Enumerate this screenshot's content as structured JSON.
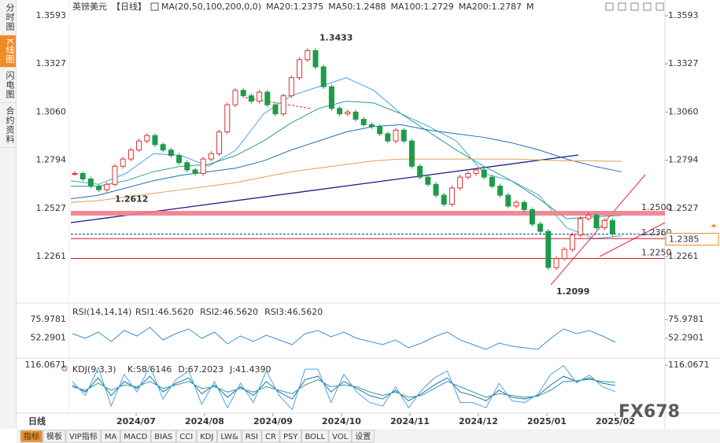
{
  "sidebar": {
    "tabs": [
      "分时图",
      "K线图",
      "闪电图",
      "合约资料"
    ]
  },
  "header": {
    "symbol": "英镑美元",
    "period": "【日线】",
    "ma": "MA(20,50,100,200,0,0)",
    "ma_values": [
      "MA20:1.2375",
      "MA50:1.2488",
      "MA100:1.2729",
      "MA200:1.2787",
      "M"
    ]
  },
  "price_panel": {
    "ylim": [
      1.2004,
      1.3645
    ],
    "yticks": [
      1.3593,
      1.3327,
      {
        "value": 1.306,
        "label": "1.3060"
      },
      1.2794,
      1.2527,
      1.2261
    ],
    "first_open": 1.272,
    "closes": [
      1.272,
      1.269,
      1.265,
      1.263,
      1.266,
      1.276,
      1.28,
      1.285,
      1.29,
      1.293,
      1.288,
      1.285,
      1.282,
      1.278,
      1.274,
      1.272,
      1.28,
      1.283,
      1.295,
      1.31,
      1.318,
      1.315,
      1.312,
      1.317,
      1.31,
      1.305,
      1.315,
      1.325,
      1.335,
      1.34,
      1.331,
      1.32,
      1.308,
      1.305,
      1.306,
      1.302,
      1.299,
      1.298,
      1.294,
      1.29,
      1.296,
      1.29,
      1.276,
      1.27,
      1.266,
      1.26,
      1.255,
      1.264,
      1.27,
      1.272,
      1.274,
      1.27,
      1.265,
      1.26,
      1.254,
      1.256,
      1.252,
      1.244,
      1.24,
      1.22,
      1.225,
      1.23,
      1.238,
      1.247,
      1.249,
      1.242,
      1.246,
      1.2385
    ],
    "ma_lines": [
      {
        "name": "MA20",
        "color": "#4aa3df",
        "values": [
          1.268,
          1.266,
          1.272,
          1.283,
          1.282,
          1.276,
          1.285,
          1.305,
          1.315,
          1.32,
          1.325,
          1.318,
          1.305,
          1.298,
          1.29,
          1.272,
          1.268,
          1.26,
          1.242,
          1.236,
          1.2375
        ]
      },
      {
        "name": "MA50",
        "color": "#2a9d8f",
        "values": [
          1.265,
          1.265,
          1.268,
          1.273,
          1.276,
          1.277,
          1.282,
          1.29,
          1.3,
          1.308,
          1.312,
          1.311,
          1.305,
          1.295,
          1.285,
          1.276,
          1.268,
          1.258,
          1.247,
          1.248,
          1.2488
        ]
      },
      {
        "name": "MA100",
        "color": "#1f6fb4",
        "values": [
          1.258,
          1.26,
          1.264,
          1.268,
          1.271,
          1.273,
          1.275,
          1.279,
          1.285,
          1.29,
          1.295,
          1.298,
          1.299,
          1.296,
          1.294,
          1.292,
          1.289,
          1.285,
          1.28,
          1.276,
          1.2729
        ]
      },
      {
        "name": "MA200",
        "color": "#e0a050",
        "values": [
          1.256,
          1.257,
          1.259,
          1.261,
          1.263,
          1.265,
          1.267,
          1.27,
          1.273,
          1.275,
          1.277,
          1.279,
          1.28,
          1.28,
          1.28,
          1.28,
          1.28,
          1.2795,
          1.279,
          1.279,
          1.2787
        ]
      }
    ],
    "annotations": [
      {
        "value": 1.3433,
        "color": "#d0303a"
      },
      {
        "value": 1.2612,
        "color": "#3a9a5a"
      },
      {
        "value": 1.2099,
        "color": "#3a9a5a"
      }
    ],
    "levels": [
      {
        "value": 1.25,
        "label": "1.2500"
      },
      {
        "value": 1.236,
        "label": "1.2360"
      },
      {
        "value": 1.225,
        "label": "1.2250"
      }
    ],
    "current": 1.2385
  },
  "rsi_panel": {
    "title": "RSI(14,14,14)",
    "legend": [
      "RSI1:46.5620",
      "RSI2:46.5620",
      "RSI3:46.5620"
    ],
    "ylim": [
      27,
      94
    ],
    "yticks": [
      75.9781,
      52.2901
    ],
    "values": [
      58,
      52,
      60,
      48,
      62,
      55,
      66,
      50,
      58,
      64,
      52,
      60,
      45,
      55,
      48,
      56,
      50,
      44,
      58,
      62,
      54,
      60,
      52,
      48,
      44,
      50,
      40,
      46,
      54,
      60,
      50,
      44,
      38,
      46,
      42,
      40,
      38,
      52,
      64,
      58,
      62,
      55,
      47
    ]
  },
  "kdj_panel": {
    "title": "KDJ(9,3,3)",
    "legend": [
      "K:58.6146",
      "D:67.2023",
      "J:41.4390"
    ],
    "ylim": [
      -20,
      130
    ],
    "yticks": [
      116.0671
    ],
    "series": [
      {
        "name": "K",
        "color": "#1f6fb4",
        "values": [
          60,
          40,
          80,
          30,
          70,
          50,
          85,
          40,
          65,
          80,
          35,
          60,
          25,
          55,
          30,
          70,
          40,
          20,
          75,
          85,
          40,
          70,
          50,
          30,
          20,
          45,
          15,
          35,
          60,
          80,
          40,
          30,
          15,
          45,
          25,
          20,
          30,
          60,
          85,
          70,
          80,
          65,
          58.6146
        ]
      },
      {
        "name": "D",
        "color": "#2a9d8f",
        "values": [
          55,
          45,
          65,
          45,
          60,
          55,
          70,
          50,
          60,
          70,
          50,
          55,
          40,
          50,
          40,
          55,
          45,
          35,
          60,
          75,
          55,
          60,
          55,
          40,
          30,
          40,
          25,
          30,
          50,
          70,
          55,
          40,
          25,
          35,
          30,
          25,
          28,
          45,
          70,
          72,
          76,
          70,
          67.2023
        ]
      },
      {
        "name": "J",
        "color": "#4aa3df",
        "values": [
          70,
          30,
          110,
          0,
          90,
          40,
          115,
          20,
          75,
          100,
          5,
          70,
          -5,
          65,
          10,
          100,
          30,
          -10,
          105,
          105,
          10,
          90,
          40,
          10,
          0,
          55,
          -5,
          45,
          80,
          100,
          10,
          10,
          -5,
          65,
          15,
          10,
          34,
          90,
          115,
          66,
          88,
          55,
          41.439
        ]
      }
    ]
  },
  "x_axis": {
    "labels": [
      "2024/07",
      "2024/08",
      "2024/09",
      "2024/10",
      "2024/11",
      "2024/12",
      "2025/01",
      "2025/02"
    ],
    "period": "日线"
  },
  "toolbar": [
    "指标",
    "模板",
    "VIP指标",
    "MA",
    "MACD",
    "BIAS",
    "CCI",
    "KDJ",
    "LW&",
    "RSI",
    "CR",
    "PSY",
    "BOLL",
    "VOL",
    "设置"
  ],
  "watermark": "FX678"
}
